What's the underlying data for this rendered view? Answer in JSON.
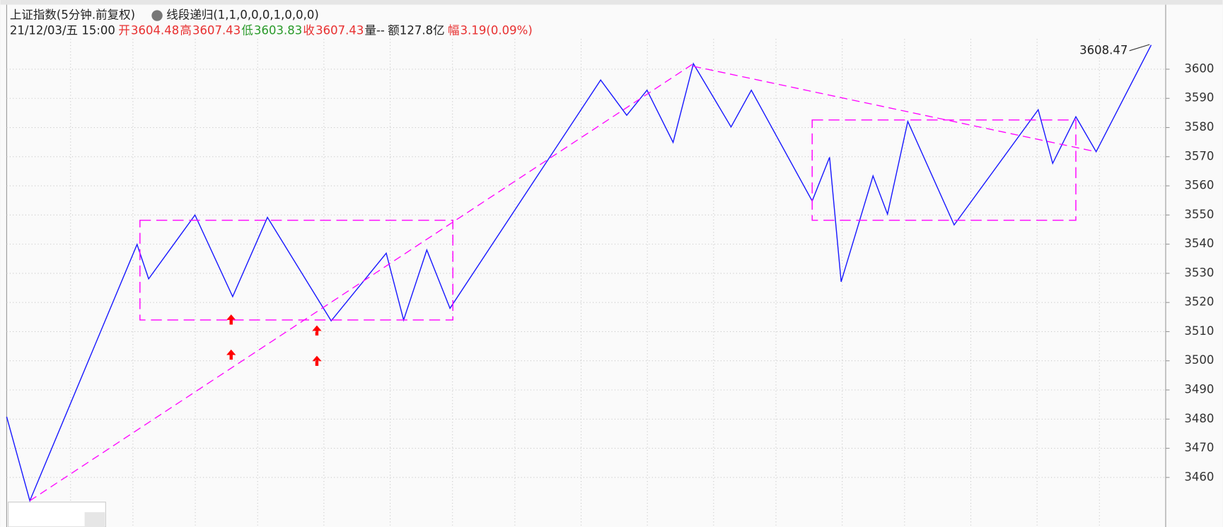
{
  "header": {
    "name": "上证指数(5分钟.前复权)",
    "indicator": "线段递归(1,1,0,0,0,1,0,0,0)",
    "time": "21/12/03/五 15:00",
    "quote": [
      {
        "label": "开",
        "value": 3604.48,
        "color": "#e83030"
      },
      {
        "label": "高",
        "value": 3607.43,
        "color": "#e83030"
      },
      {
        "label": "低",
        "value": 3603.83,
        "color": "#2a9a2a"
      },
      {
        "label": "收",
        "value": 3607.43,
        "color": "#e83030"
      }
    ],
    "volume": "量--",
    "amount": "额127.8亿",
    "change_label": "幅",
    "change": "3.19(0.09%)"
  },
  "chart_data": {
    "type": "line",
    "xlim": [
      0,
      400
    ],
    "ylim": [
      3443,
      3621.6
    ],
    "yticks": [
      3460,
      3470,
      3480,
      3490,
      3500,
      3510,
      3520,
      3530,
      3540,
      3550,
      3560,
      3570,
      3580,
      3590,
      3600
    ],
    "grid": true,
    "series": [
      {
        "color": "#1a1aff",
        "x": [
          0,
          8,
          45,
          49,
          65,
          78,
          90,
          112,
          131,
          137,
          145,
          153,
          205,
          214,
          221,
          230,
          237,
          250,
          257,
          278,
          284,
          288,
          299,
          304,
          311,
          327,
          356,
          361,
          369,
          376,
          395
        ],
        "values": [
          3480.8,
          3452,
          3539.9,
          3528.1,
          3550,
          3522,
          3549.2,
          3513.7,
          3536.9,
          3514,
          3538,
          3518,
          3596.3,
          3584.2,
          3592.8,
          3574.9,
          3601.9,
          3580.2,
          3592.8,
          3554.8,
          3569.8,
          3527.1,
          3563.4,
          3550.3,
          3582.1,
          3546.6,
          3586.1,
          3567.7,
          3583.7,
          3571.7,
          3608.3
        ]
      }
    ],
    "lines": [
      {
        "color": "#ff00ff",
        "x": [
          8,
          237
        ],
        "values": [
          3452,
          3601.9
        ]
      },
      {
        "color": "#ff00ff",
        "x": [
          237,
          376
        ],
        "values": [
          3601,
          3571.7
        ]
      }
    ],
    "boxes": [
      {
        "color": "#ff00ff",
        "x": [
          46,
          154
        ],
        "values": [
          3514,
          3548.2
        ]
      },
      {
        "color": "#ff00ff",
        "x": [
          278,
          369
        ],
        "values": [
          3548.2,
          3582.6
        ]
      }
    ],
    "last_price": {
      "x": 395,
      "value": 3608.47
    }
  }
}
